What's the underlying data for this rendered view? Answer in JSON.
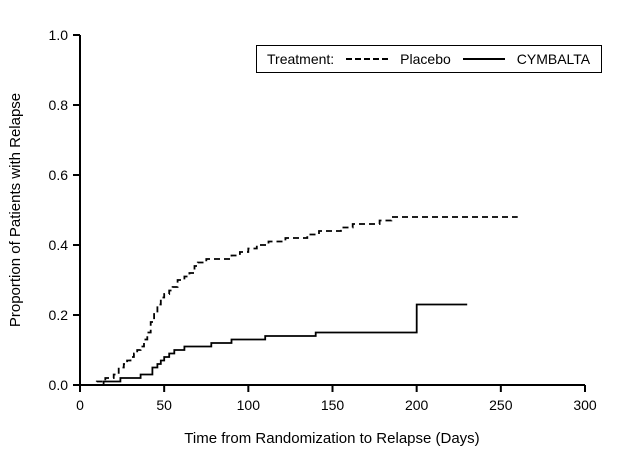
{
  "figure": {
    "background": "#ffffff",
    "line_color": "#000000"
  },
  "chart_data": {
    "type": "line",
    "subtype": "step-after",
    "title": "",
    "xlabel": "Time from Randomization to Relapse (Days)",
    "ylabel": "Proportion of Patients with Relapse",
    "xlim": [
      0,
      300
    ],
    "ylim": [
      0.0,
      1.0
    ],
    "grid": false,
    "xticks": [
      {
        "value": 0,
        "label": "0"
      },
      {
        "value": 50,
        "label": "50"
      },
      {
        "value": 100,
        "label": "100"
      },
      {
        "value": 150,
        "label": "150"
      },
      {
        "value": 200,
        "label": "200"
      },
      {
        "value": 250,
        "label": "250"
      },
      {
        "value": 300,
        "label": "300"
      }
    ],
    "yticks": [
      {
        "value": 0.0,
        "label": "0.0"
      },
      {
        "value": 0.2,
        "label": "0.2"
      },
      {
        "value": 0.4,
        "label": "0.4"
      },
      {
        "value": 0.6,
        "label": "0.6"
      },
      {
        "value": 0.8,
        "label": "0.8"
      },
      {
        "value": 1.0,
        "label": "1.0"
      }
    ],
    "legend": {
      "title": "Treatment:",
      "position": "top-right-inside",
      "entries": [
        {
          "name": "Placebo",
          "line_style": "dashed"
        },
        {
          "name": "CYMBALTA",
          "line_style": "solid"
        }
      ]
    },
    "series": [
      {
        "name": "Placebo",
        "line_style": "dashed",
        "color": "#000000",
        "points": [
          [
            0,
            0.0
          ],
          [
            10,
            0.01
          ],
          [
            15,
            0.02
          ],
          [
            20,
            0.03
          ],
          [
            23,
            0.05
          ],
          [
            26,
            0.06
          ],
          [
            28,
            0.07
          ],
          [
            30,
            0.08
          ],
          [
            32,
            0.09
          ],
          [
            34,
            0.1
          ],
          [
            36,
            0.11
          ],
          [
            38,
            0.13
          ],
          [
            40,
            0.15
          ],
          [
            42,
            0.18
          ],
          [
            44,
            0.21
          ],
          [
            46,
            0.23
          ],
          [
            48,
            0.25
          ],
          [
            50,
            0.26
          ],
          [
            53,
            0.27
          ],
          [
            55,
            0.28
          ],
          [
            58,
            0.3
          ],
          [
            62,
            0.31
          ],
          [
            65,
            0.32
          ],
          [
            68,
            0.34
          ],
          [
            70,
            0.35
          ],
          [
            75,
            0.36
          ],
          [
            90,
            0.37
          ],
          [
            95,
            0.38
          ],
          [
            100,
            0.39
          ],
          [
            105,
            0.4
          ],
          [
            112,
            0.41
          ],
          [
            122,
            0.42
          ],
          [
            135,
            0.43
          ],
          [
            142,
            0.44
          ],
          [
            155,
            0.45
          ],
          [
            162,
            0.46
          ],
          [
            178,
            0.47
          ],
          [
            185,
            0.48
          ],
          [
            260,
            0.48
          ]
        ]
      },
      {
        "name": "CYMBALTA",
        "line_style": "solid",
        "color": "#000000",
        "points": [
          [
            0,
            0.0
          ],
          [
            14,
            0.01
          ],
          [
            24,
            0.02
          ],
          [
            36,
            0.03
          ],
          [
            43,
            0.05
          ],
          [
            46,
            0.06
          ],
          [
            48,
            0.07
          ],
          [
            50,
            0.08
          ],
          [
            53,
            0.09
          ],
          [
            56,
            0.1
          ],
          [
            62,
            0.11
          ],
          [
            78,
            0.12
          ],
          [
            90,
            0.13
          ],
          [
            110,
            0.14
          ],
          [
            140,
            0.15
          ],
          [
            200,
            0.23
          ],
          [
            230,
            0.23
          ]
        ]
      }
    ]
  }
}
